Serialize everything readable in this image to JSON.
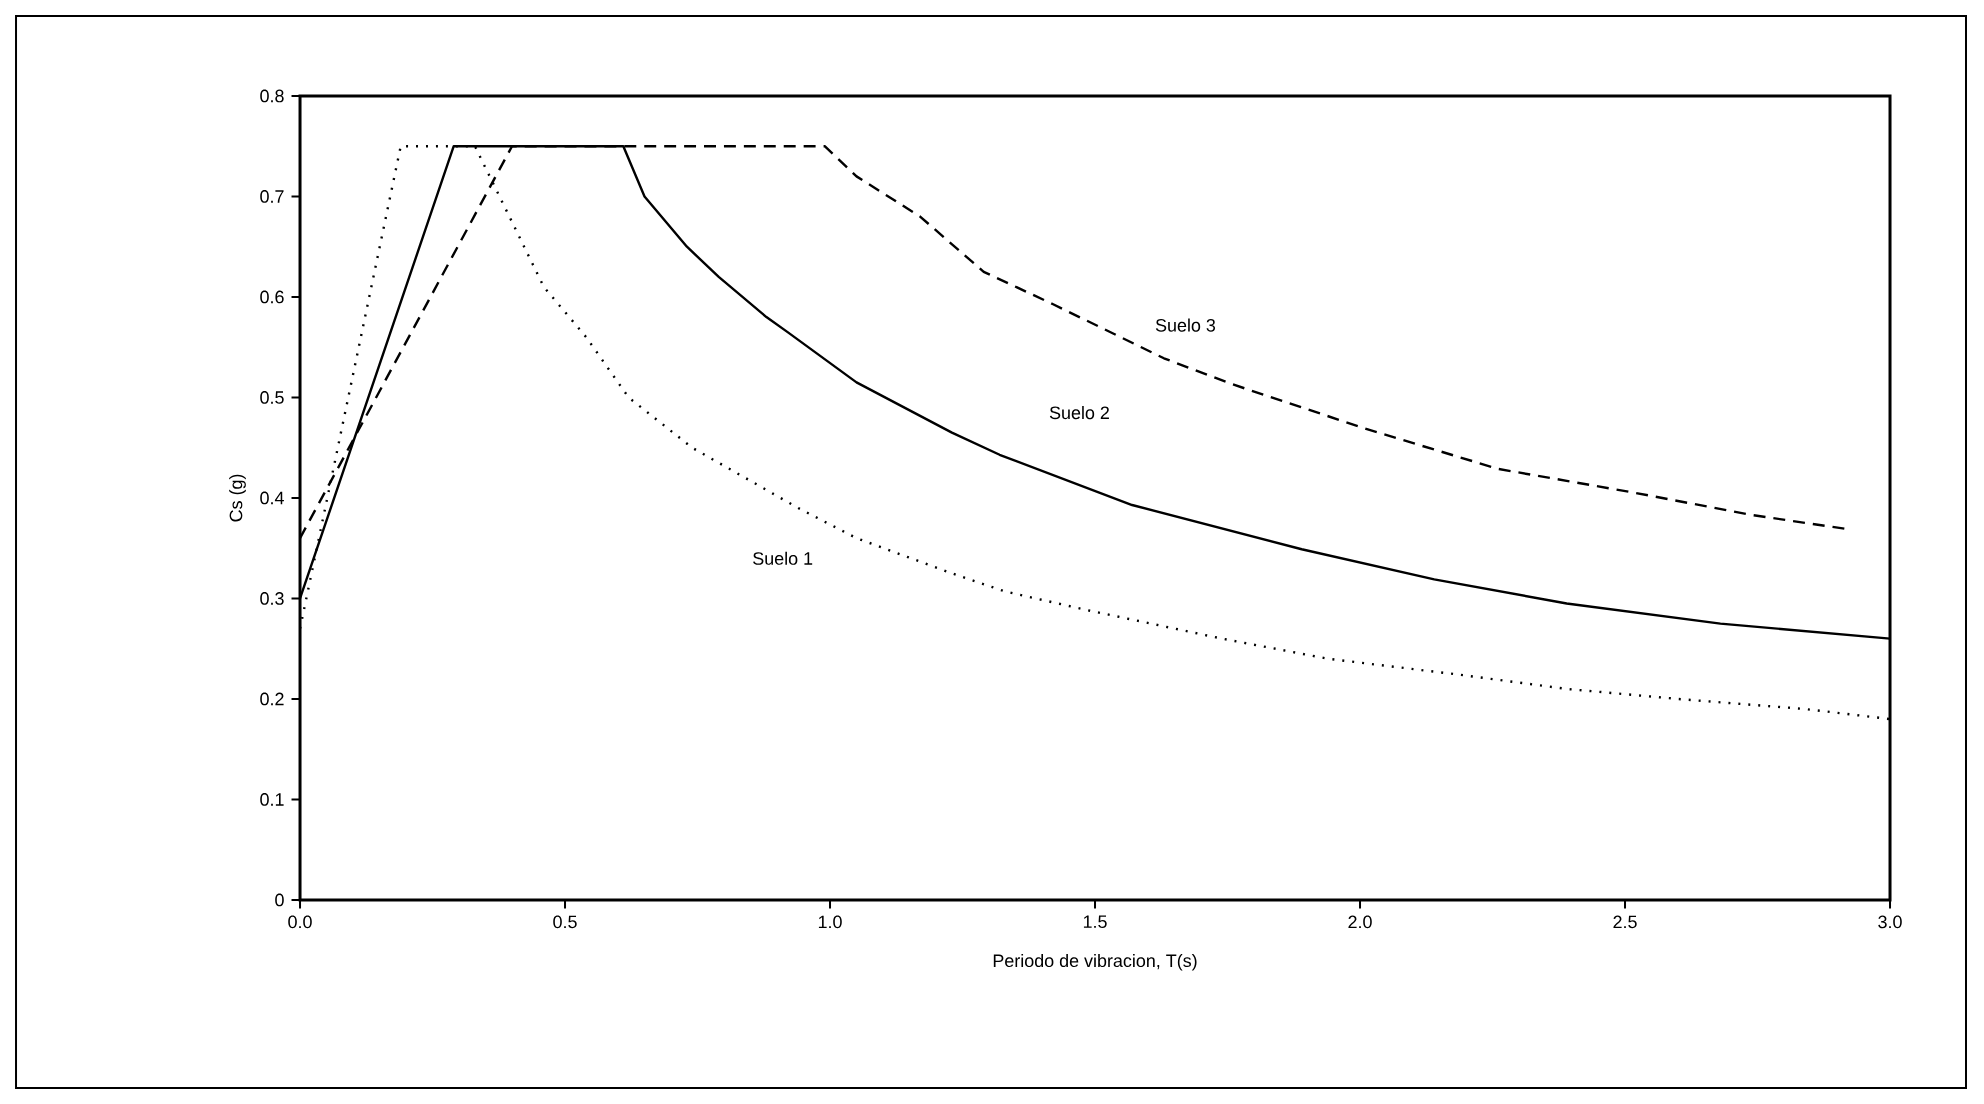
{
  "chart_data": {
    "type": "line",
    "xlabel": "Periodo de vibracion, T(s)",
    "ylabel": "Cs (g)",
    "xlim": [
      0,
      3
    ],
    "ylim": [
      0,
      0.8
    ],
    "xticks": [
      {
        "value": 0,
        "label": "0.0"
      },
      0.5,
      {
        "value": 1,
        "label": "1.0"
      },
      1.5,
      {
        "value": 2,
        "label": "2.0"
      },
      2.5,
      {
        "value": 3,
        "label": "3.0"
      }
    ],
    "yticks": [
      0,
      0.1,
      0.2,
      0.3,
      0.4,
      0.5,
      0.6,
      0.7,
      0.8
    ],
    "grid": false,
    "legend": false,
    "marker": "none",
    "series": [
      {
        "name": "Suelo 1",
        "color": "#000000",
        "line_style": "dotted",
        "x": [
          0,
          0.19,
          0.33,
          0.46,
          0.54,
          0.62,
          0.74,
          0.84,
          0.94,
          1.05,
          1.23,
          1.33,
          1.48,
          1.74,
          1.94,
          2.19,
          2.39,
          2.6,
          2.84,
          3.0
        ],
        "values": [
          0.27,
          0.75,
          0.75,
          0.61,
          0.56,
          0.5,
          0.45,
          0.42,
          0.39,
          0.36,
          0.325,
          0.307,
          0.289,
          0.26,
          0.24,
          0.224,
          0.21,
          0.2,
          0.19,
          0.18
        ]
      },
      {
        "name": "Suelo 2",
        "color": "#000000",
        "line_style": "solid",
        "x": [
          0,
          0.29,
          0.61,
          0.65,
          0.73,
          0.79,
          0.88,
          0.92,
          1.05,
          1.23,
          1.32,
          1.57,
          1.89,
          2.14,
          2.39,
          2.68,
          3.0
        ],
        "values": [
          0.3,
          0.75,
          0.75,
          0.7,
          0.65,
          0.62,
          0.58,
          0.565,
          0.515,
          0.465,
          0.443,
          0.393,
          0.349,
          0.319,
          0.295,
          0.275,
          0.26
        ]
      },
      {
        "name": "Suelo 3",
        "color": "#000000",
        "line_style": "dashed",
        "x": [
          0,
          0.4,
          0.99,
          1.05,
          1.17,
          1.29,
          1.42,
          1.63,
          1.76,
          2.01,
          2.26,
          2.52,
          2.74,
          2.92
        ],
        "values": [
          0.36,
          0.75,
          0.75,
          0.72,
          0.68,
          0.625,
          0.593,
          0.539,
          0.513,
          0.469,
          0.429,
          0.405,
          0.383,
          0.369
        ]
      }
    ]
  }
}
